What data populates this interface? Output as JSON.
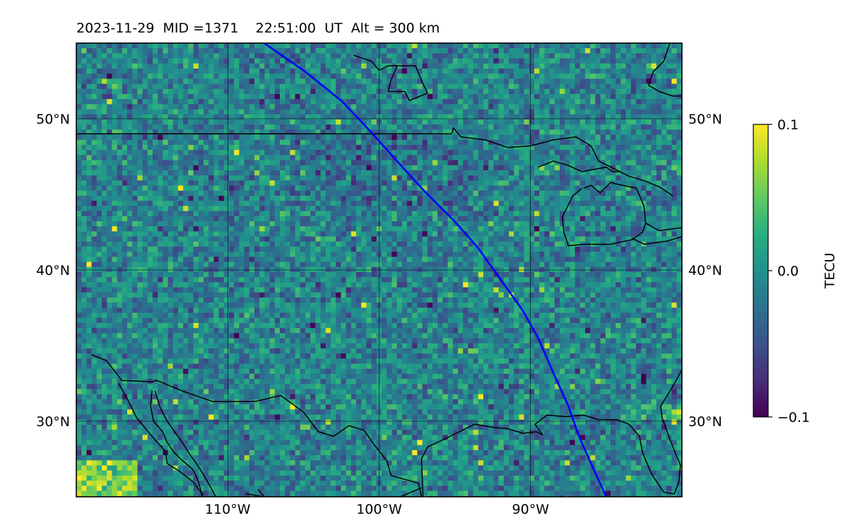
{
  "header": {
    "date": "2023-11-29",
    "mid_label": "MID =1371",
    "time": "22:51:00",
    "time_unit": "UT",
    "altitude": "Alt = 300 km"
  },
  "map": {
    "extent": {
      "lon_min": -120,
      "lon_max": -80,
      "lat_min": 25,
      "lat_max": 55
    },
    "lon_ticks": [
      {
        "lon": -110,
        "label": "110°W"
      },
      {
        "lon": -100,
        "label": "100°W"
      },
      {
        "lon": -90,
        "label": "90°W"
      }
    ],
    "lat_ticks": [
      {
        "lat": 50,
        "label": "50°N"
      },
      {
        "lat": 40,
        "label": "40°N"
      },
      {
        "lat": 30,
        "label": "30°N"
      }
    ],
    "colormap": "viridis",
    "colors": {
      "track": "#0000ff",
      "coast": "#000000",
      "grid": "#000000"
    },
    "track": [
      [
        -107.6,
        55
      ],
      [
        -105,
        53.2
      ],
      [
        -102.5,
        51.2
      ],
      [
        -100.6,
        49.2
      ],
      [
        -99,
        47.4
      ],
      [
        -97,
        45.2
      ],
      [
        -95,
        43.2
      ],
      [
        -93.5,
        41.5
      ],
      [
        -92,
        39.4
      ],
      [
        -90.5,
        37.3
      ],
      [
        -89.5,
        35.5
      ],
      [
        -88.5,
        33.2
      ],
      [
        -87.5,
        31
      ],
      [
        -86.8,
        29
      ],
      [
        -86,
        27.2
      ],
      [
        -85,
        25
      ]
    ],
    "boundaries": [
      [
        [
          -120,
          49
        ],
        [
          -95.2,
          49
        ]
      ],
      [
        [
          -95.2,
          49
        ],
        [
          -95.1,
          49.4
        ],
        [
          -94.6,
          48.8
        ],
        [
          -93,
          48.6
        ],
        [
          -91.5,
          48.1
        ],
        [
          -90,
          48.2
        ],
        [
          -88.5,
          48.6
        ],
        [
          -87,
          48.8
        ],
        [
          -86,
          48.2
        ],
        [
          -85.5,
          47.2
        ],
        [
          -84.5,
          46.7
        ],
        [
          -83.5,
          46.2
        ]
      ],
      [
        [
          -89.5,
          46.8
        ],
        [
          -88.5,
          47.2
        ],
        [
          -87.5,
          46.9
        ],
        [
          -86.6,
          46.5
        ],
        [
          -85,
          46.8
        ],
        [
          -84.6,
          46.5
        ],
        [
          -84.1,
          46.5
        ]
      ],
      [
        [
          -83.5,
          46.2
        ],
        [
          -82.5,
          45.9
        ],
        [
          -81.5,
          45.5
        ],
        [
          -80.6,
          44.9
        ]
      ],
      [
        [
          -86.5,
          45.4
        ],
        [
          -86,
          45.6
        ],
        [
          -85.4,
          45.1
        ],
        [
          -84.7,
          45.8
        ],
        [
          -84.4,
          45.7
        ],
        [
          -83,
          45.4
        ],
        [
          -82.5,
          44.2
        ],
        [
          -82.4,
          43.1
        ],
        [
          -82.6,
          42.5
        ],
        [
          -83.3,
          42
        ],
        [
          -84.7,
          41.7
        ],
        [
          -86.4,
          41.7
        ],
        [
          -87.5,
          41.6
        ],
        [
          -87.8,
          42.5
        ],
        [
          -87.9,
          43.5
        ],
        [
          -87.2,
          44.9
        ],
        [
          -86.6,
          45.4
        ]
      ],
      [
        [
          -82.4,
          43.1
        ],
        [
          -81.5,
          42.6
        ],
        [
          -80,
          42.8
        ]
      ],
      [
        [
          -83.3,
          42.1
        ],
        [
          -82.5,
          41.7
        ],
        [
          -81,
          41.9
        ],
        [
          -80,
          42.2
        ]
      ],
      [
        [
          -119,
          34.4
        ],
        [
          -118,
          34
        ],
        [
          -117,
          32.7
        ],
        [
          -115,
          32.6
        ],
        [
          -114.7,
          32.7
        ],
        [
          -113,
          32
        ],
        [
          -111,
          31.3
        ],
        [
          -108.2,
          31.3
        ],
        [
          -106.5,
          31.7
        ],
        [
          -105,
          30.6
        ],
        [
          -104,
          29.3
        ],
        [
          -103,
          29
        ],
        [
          -102,
          29.7
        ],
        [
          -101,
          29.4
        ],
        [
          -100.3,
          28.4
        ],
        [
          -99.5,
          27.4
        ],
        [
          -99.2,
          26.4
        ],
        [
          -97.4,
          25.9
        ],
        [
          -97.2,
          25
        ]
      ],
      [
        [
          -97.1,
          25
        ],
        [
          -97.2,
          27.5
        ],
        [
          -96.8,
          28.3
        ],
        [
          -95.5,
          28.9
        ],
        [
          -94.5,
          29.4
        ],
        [
          -93.7,
          29.8
        ],
        [
          -92.5,
          29.6
        ],
        [
          -91.5,
          29.5
        ],
        [
          -90.5,
          29.2
        ],
        [
          -89.6,
          29.3
        ],
        [
          -89.2,
          29.1
        ],
        [
          -89.7,
          29.8
        ],
        [
          -88.9,
          30.4
        ],
        [
          -87.7,
          30.3
        ],
        [
          -86.5,
          30.4
        ],
        [
          -85.5,
          30.1
        ],
        [
          -84.3,
          30.1
        ],
        [
          -83.5,
          29.8
        ],
        [
          -82.8,
          29
        ],
        [
          -82.6,
          27.9
        ],
        [
          -82,
          26.5
        ],
        [
          -81.6,
          25.9
        ],
        [
          -81.2,
          25.3
        ]
      ],
      [
        [
          -81.2,
          25.3
        ],
        [
          -80.5,
          25.2
        ],
        [
          -80.2,
          26
        ],
        [
          -80.1,
          27.1
        ],
        [
          -80.6,
          28.3
        ],
        [
          -81.3,
          30.2
        ],
        [
          -81.4,
          31
        ]
      ],
      [
        [
          -81.4,
          31
        ],
        [
          -80.6,
          32.3
        ],
        [
          -80,
          33.4
        ]
      ],
      [
        [
          -114.8,
          32
        ],
        [
          -114.5,
          31
        ],
        [
          -114,
          30
        ],
        [
          -113.5,
          29.3
        ],
        [
          -113,
          28.6
        ],
        [
          -112.5,
          27.8
        ],
        [
          -112,
          27.1
        ],
        [
          -111.5,
          26.3
        ],
        [
          -111,
          25.4
        ],
        [
          -110.8,
          25
        ]
      ],
      [
        [
          -115,
          32
        ],
        [
          -115.1,
          31
        ],
        [
          -114.9,
          30
        ],
        [
          -114.3,
          29.3
        ],
        [
          -114,
          28.6
        ],
        [
          -113.6,
          28
        ],
        [
          -113.1,
          27.5
        ],
        [
          -112.3,
          26.8
        ],
        [
          -112,
          26.2
        ],
        [
          -111.8,
          25.5
        ],
        [
          -111.7,
          25
        ]
      ],
      [
        [
          -117.2,
          32.5
        ],
        [
          -116.6,
          31.4
        ],
        [
          -116,
          30.2
        ],
        [
          -115,
          29
        ],
        [
          -114.1,
          28
        ],
        [
          -114,
          27.2
        ],
        [
          -113.2,
          26.7
        ],
        [
          -112.3,
          26
        ],
        [
          -111.6,
          25.1
        ]
      ],
      [
        [
          -108,
          25.5
        ],
        [
          -107.6,
          25
        ],
        [
          -108.8,
          25.2
        ]
      ],
      [
        [
          -98.6,
          25
        ],
        [
          -97.2,
          25.6
        ]
      ],
      [
        [
          -101.7,
          54.2
        ],
        [
          -100.5,
          53.8
        ],
        [
          -100,
          53.2
        ],
        [
          -99.4,
          53.5
        ],
        [
          -98.8,
          53.5
        ],
        [
          -99.2,
          52.6
        ],
        [
          -99.4,
          51.8
        ],
        [
          -98.3,
          51.8
        ],
        [
          -98,
          51.2
        ],
        [
          -96.8,
          51.7
        ],
        [
          -97.1,
          52.3
        ],
        [
          -97.6,
          53.5
        ],
        [
          -98.8,
          53.5
        ]
      ],
      [
        [
          -80.8,
          55
        ],
        [
          -81.2,
          53.8
        ],
        [
          -81.9,
          53.1
        ],
        [
          -82.2,
          52.2
        ],
        [
          -81.5,
          51.8
        ],
        [
          -80.6,
          51.5
        ],
        [
          -80,
          51.5
        ]
      ],
      [
        [
          -80,
          33.4
        ],
        [
          -79.5,
          34
        ],
        [
          -78.6,
          34.4
        ]
      ]
    ]
  },
  "colorbar": {
    "label": "TECU",
    "ticks": [
      {
        "value": 0.1,
        "label": "0.1"
      },
      {
        "value": 0.0,
        "label": "0.0"
      },
      {
        "value": -0.1,
        "label": "−0.1"
      }
    ],
    "range": [
      -0.1,
      0.1
    ]
  }
}
